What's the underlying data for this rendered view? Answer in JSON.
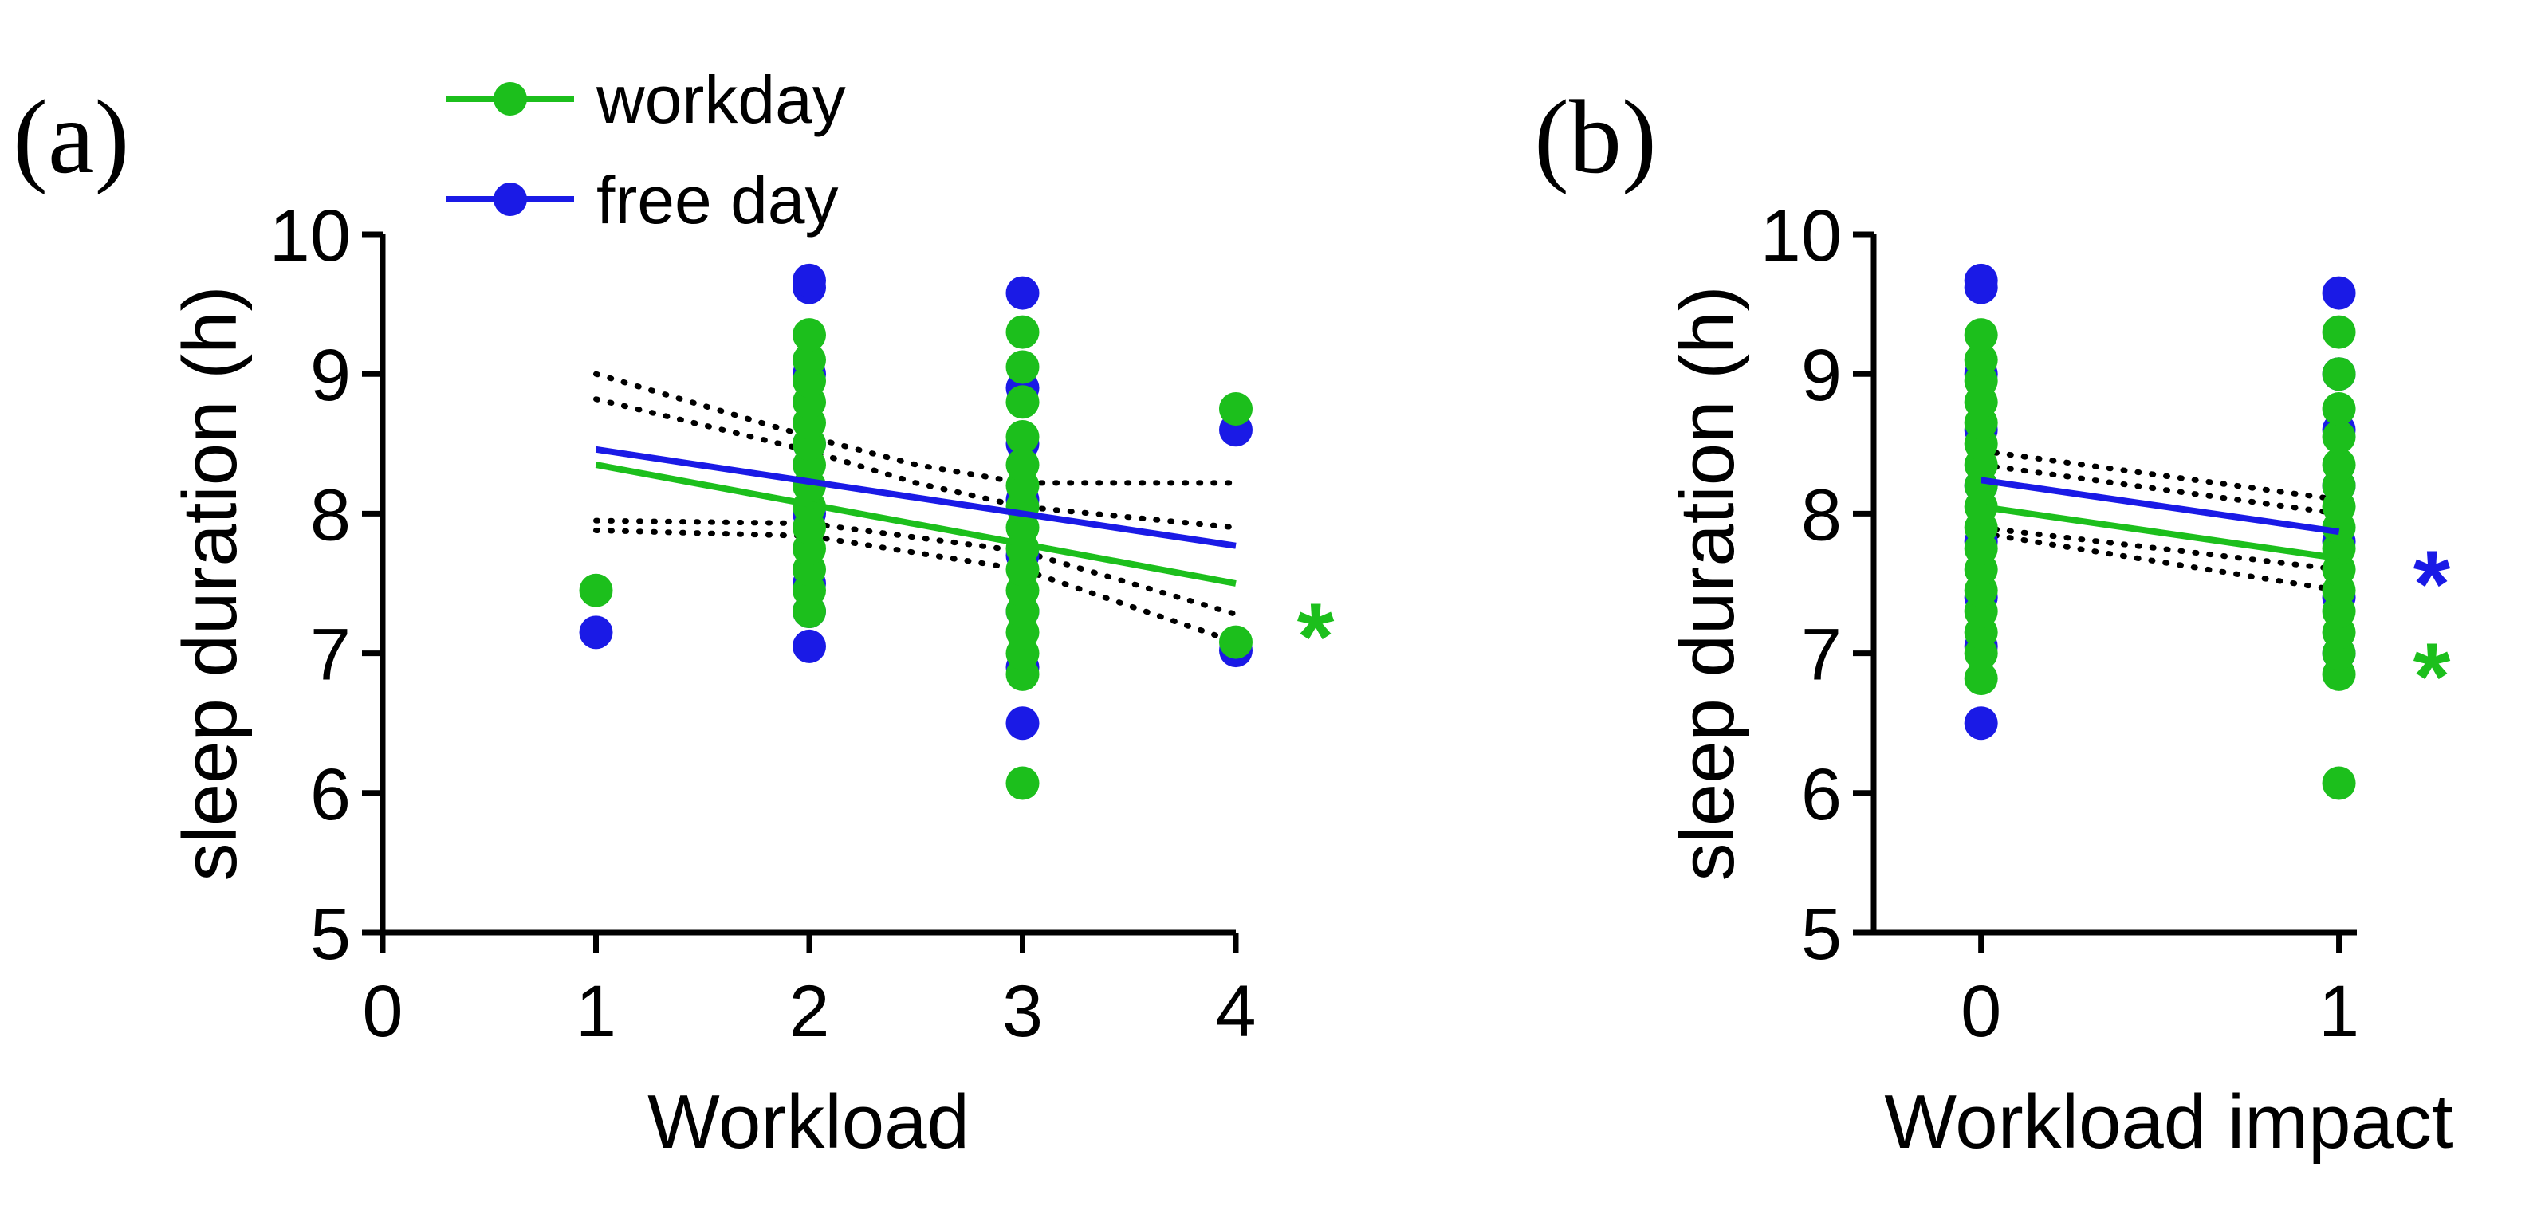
{
  "figure": {
    "colors": {
      "workday": "#1cbf1c",
      "free_day": "#1a1ae6",
      "ci": "#000000"
    },
    "legend": {
      "placement": "top-left",
      "entries": [
        {
          "label": "workday",
          "color": "#1cbf1c"
        },
        {
          "label": "free day",
          "color": "#1a1ae6"
        }
      ]
    }
  },
  "chart_data": [
    {
      "panel_label": "(a)",
      "type": "scatter",
      "xlabel": "Workload",
      "ylabel": "sleep duration (h)",
      "xlim": [
        0,
        4
      ],
      "ylim": [
        5,
        10
      ],
      "xticks": [
        "0",
        "1",
        "2",
        "3",
        "4"
      ],
      "yticks": [
        "5",
        "6",
        "7",
        "8",
        "9",
        "10"
      ],
      "grid": false,
      "series": [
        {
          "name": "workday",
          "color": "#1cbf1c",
          "points": [
            [
              1,
              7.45
            ],
            [
              2,
              7.3
            ],
            [
              2,
              7.45
            ],
            [
              2,
              7.6
            ],
            [
              2,
              7.75
            ],
            [
              2,
              7.9
            ],
            [
              2,
              8.05
            ],
            [
              2,
              8.2
            ],
            [
              2,
              8.35
            ],
            [
              2,
              8.5
            ],
            [
              2,
              8.65
            ],
            [
              2,
              8.8
            ],
            [
              2,
              8.95
            ],
            [
              2,
              9.1
            ],
            [
              2,
              9.28
            ],
            [
              3,
              6.07
            ],
            [
              3,
              6.85
            ],
            [
              3,
              7.0
            ],
            [
              3,
              7.15
            ],
            [
              3,
              7.3
            ],
            [
              3,
              7.45
            ],
            [
              3,
              7.6
            ],
            [
              3,
              7.75
            ],
            [
              3,
              7.9
            ],
            [
              3,
              8.05
            ],
            [
              3,
              8.2
            ],
            [
              3,
              8.35
            ],
            [
              3,
              8.55
            ],
            [
              3,
              8.8
            ],
            [
              3,
              9.05
            ],
            [
              3,
              9.3
            ],
            [
              4,
              7.08
            ],
            [
              4,
              8.75
            ]
          ],
          "regression": {
            "x": [
              1,
              4
            ],
            "y": [
              8.35,
              7.5
            ]
          },
          "significance": "*"
        },
        {
          "name": "free day",
          "color": "#1a1ae6",
          "points": [
            [
              1,
              7.15
            ],
            [
              2,
              7.05
            ],
            [
              2,
              7.3
            ],
            [
              2,
              7.5
            ],
            [
              2,
              8.0
            ],
            [
              2,
              8.5
            ],
            [
              2,
              9.0
            ],
            [
              2,
              9.62
            ],
            [
              2,
              9.67
            ],
            [
              3,
              6.5
            ],
            [
              3,
              6.9
            ],
            [
              3,
              7.3
            ],
            [
              3,
              7.7
            ],
            [
              3,
              8.1
            ],
            [
              3,
              8.5
            ],
            [
              3,
              8.9
            ],
            [
              3,
              9.58
            ],
            [
              4,
              7.02
            ],
            [
              4,
              8.6
            ]
          ],
          "regression": {
            "x": [
              1,
              4
            ],
            "y": [
              8.46,
              7.77
            ]
          }
        }
      ],
      "confidence_bands": [
        {
          "x": [
            1,
            2,
            2.5,
            3,
            4
          ],
          "y": [
            9.0,
            8.55,
            8.35,
            8.22,
            8.22
          ]
        },
        {
          "x": [
            1,
            2,
            3,
            4
          ],
          "y": [
            7.95,
            7.93,
            7.73,
            7.28
          ]
        },
        {
          "x": [
            1,
            2,
            2.5,
            3,
            4
          ],
          "y": [
            8.82,
            8.45,
            8.22,
            8.05,
            7.9
          ]
        },
        {
          "x": [
            1,
            2,
            3,
            4
          ],
          "y": [
            7.88,
            7.84,
            7.6,
            7.08
          ]
        }
      ]
    },
    {
      "panel_label": "(b)",
      "type": "scatter",
      "xlabel": "Workload impact",
      "ylabel": "sleep duration (h)",
      "xlim": [
        -0.3,
        1.05
      ],
      "ylim": [
        5,
        10
      ],
      "xticks": [
        "0",
        "1"
      ],
      "yticks": [
        "5",
        "6",
        "7",
        "8",
        "9",
        "10"
      ],
      "grid": false,
      "series": [
        {
          "name": "workday",
          "color": "#1cbf1c",
          "points": [
            [
              0,
              6.82
            ],
            [
              0,
              7.0
            ],
            [
              0,
              7.15
            ],
            [
              0,
              7.3
            ],
            [
              0,
              7.45
            ],
            [
              0,
              7.6
            ],
            [
              0,
              7.75
            ],
            [
              0,
              7.9
            ],
            [
              0,
              8.05
            ],
            [
              0,
              8.2
            ],
            [
              0,
              8.35
            ],
            [
              0,
              8.5
            ],
            [
              0,
              8.65
            ],
            [
              0,
              8.8
            ],
            [
              0,
              8.95
            ],
            [
              0,
              9.1
            ],
            [
              0,
              9.28
            ],
            [
              1,
              6.07
            ],
            [
              1,
              6.85
            ],
            [
              1,
              7.0
            ],
            [
              1,
              7.15
            ],
            [
              1,
              7.3
            ],
            [
              1,
              7.45
            ],
            [
              1,
              7.6
            ],
            [
              1,
              7.75
            ],
            [
              1,
              7.9
            ],
            [
              1,
              8.05
            ],
            [
              1,
              8.2
            ],
            [
              1,
              8.35
            ],
            [
              1,
              8.55
            ],
            [
              1,
              8.75
            ],
            [
              1,
              9.0
            ],
            [
              1,
              9.3
            ]
          ],
          "regression": {
            "x": [
              0,
              1
            ],
            "y": [
              8.05,
              7.68
            ]
          },
          "significance": "*"
        },
        {
          "name": "free day",
          "color": "#1a1ae6",
          "points": [
            [
              0,
              6.5
            ],
            [
              0,
              7.05
            ],
            [
              0,
              7.4
            ],
            [
              0,
              7.8
            ],
            [
              0,
              8.2
            ],
            [
              0,
              8.6
            ],
            [
              0,
              9.0
            ],
            [
              0,
              9.62
            ],
            [
              0,
              9.67
            ],
            [
              1,
              7.0
            ],
            [
              1,
              7.4
            ],
            [
              1,
              7.8
            ],
            [
              1,
              8.2
            ],
            [
              1,
              8.6
            ],
            [
              1,
              9.0
            ],
            [
              1,
              9.58
            ]
          ],
          "regression": {
            "x": [
              0,
              1
            ],
            "y": [
              8.24,
              7.87
            ]
          },
          "significance": "*"
        }
      ],
      "confidence_bands": [
        {
          "x": [
            0,
            1
          ],
          "y": [
            8.45,
            8.1
          ]
        },
        {
          "x": [
            0,
            1
          ],
          "y": [
            7.86,
            7.45
          ]
        },
        {
          "x": [
            0,
            1
          ],
          "y": [
            8.35,
            8.0
          ]
        },
        {
          "x": [
            0,
            1
          ],
          "y": [
            7.9,
            7.6
          ]
        }
      ]
    }
  ]
}
